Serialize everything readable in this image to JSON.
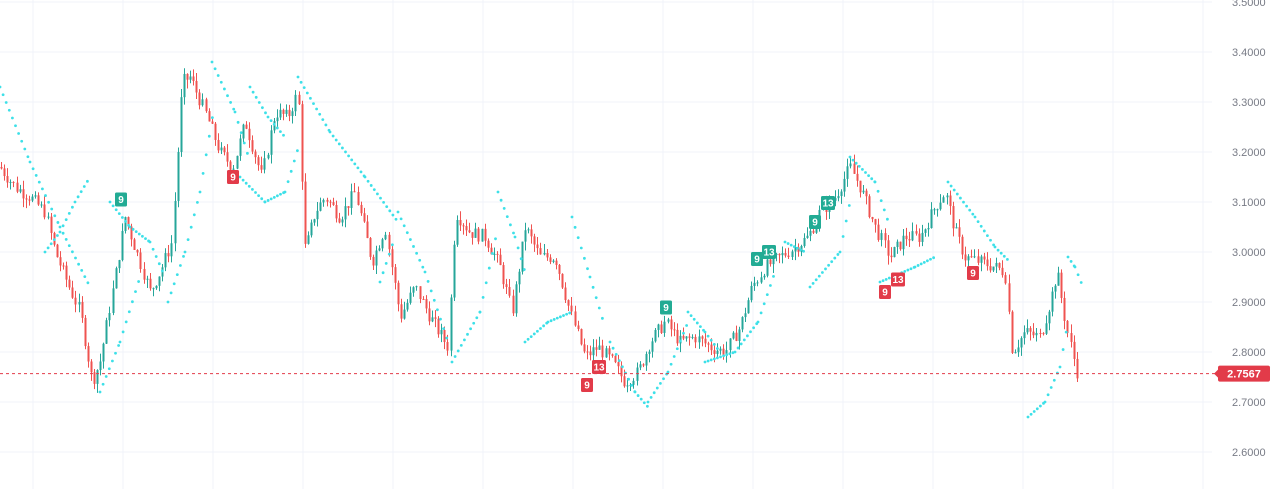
{
  "chart_data": {
    "type": "candlestick",
    "title": "",
    "ylim": [
      2.575,
      3.5
    ],
    "y_ticks": [
      "2.6000",
      "2.7000",
      "2.8000",
      "2.9000",
      "3.0000",
      "3.1000",
      "3.2000",
      "3.3000",
      "3.4000",
      "3.5000"
    ],
    "last_price": "2.7567",
    "grid": true,
    "colors": {
      "up": "#26a69a",
      "down": "#ef5350",
      "sar": "#3de0e8",
      "buy_badge": "#22ab94",
      "sell_badge": "#e23b49",
      "grid": "#f0f3fa"
    },
    "price_path": [
      [
        0,
        3.17
      ],
      [
        15,
        3.13
      ],
      [
        30,
        3.11
      ],
      [
        45,
        3.08
      ],
      [
        55,
        3.0
      ],
      [
        65,
        2.95
      ],
      [
        80,
        2.88
      ],
      [
        92,
        2.74
      ],
      [
        100,
        2.78
      ],
      [
        115,
        2.95
      ],
      [
        125,
        3.07
      ],
      [
        135,
        3.01
      ],
      [
        150,
        2.92
      ],
      [
        160,
        2.96
      ],
      [
        172,
        3.02
      ],
      [
        182,
        3.34
      ],
      [
        190,
        3.35
      ],
      [
        205,
        3.28
      ],
      [
        220,
        3.2
      ],
      [
        233,
        3.17
      ],
      [
        245,
        3.26
      ],
      [
        262,
        3.15
      ],
      [
        275,
        3.28
      ],
      [
        288,
        3.27
      ],
      [
        298,
        3.32
      ],
      [
        305,
        3.0
      ],
      [
        315,
        3.08
      ],
      [
        325,
        3.11
      ],
      [
        340,
        3.07
      ],
      [
        355,
        3.12
      ],
      [
        372,
        2.98
      ],
      [
        385,
        3.05
      ],
      [
        400,
        2.87
      ],
      [
        415,
        2.93
      ],
      [
        430,
        2.87
      ],
      [
        448,
        2.81
      ],
      [
        455,
        3.08
      ],
      [
        470,
        3.04
      ],
      [
        485,
        3.03
      ],
      [
        500,
        2.97
      ],
      [
        512,
        2.88
      ],
      [
        525,
        3.05
      ],
      [
        540,
        2.99
      ],
      [
        555,
        2.99
      ],
      [
        570,
        2.88
      ],
      [
        585,
        2.79
      ],
      [
        598,
        2.81
      ],
      [
        612,
        2.78
      ],
      [
        625,
        2.74
      ],
      [
        638,
        2.76
      ],
      [
        650,
        2.82
      ],
      [
        665,
        2.86
      ],
      [
        680,
        2.82
      ],
      [
        695,
        2.83
      ],
      [
        710,
        2.81
      ],
      [
        725,
        2.8
      ],
      [
        740,
        2.85
      ],
      [
        752,
        2.93
      ],
      [
        765,
        2.97
      ],
      [
        780,
        2.99
      ],
      [
        795,
        3.01
      ],
      [
        808,
        3.03
      ],
      [
        820,
        3.08
      ],
      [
        835,
        3.11
      ],
      [
        850,
        3.17
      ],
      [
        860,
        3.13
      ],
      [
        875,
        3.05
      ],
      [
        890,
        2.99
      ],
      [
        905,
        3.03
      ],
      [
        920,
        3.03
      ],
      [
        935,
        3.09
      ],
      [
        945,
        3.12
      ],
      [
        955,
        3.04
      ],
      [
        965,
        2.99
      ],
      [
        980,
        2.98
      ],
      [
        995,
        2.97
      ],
      [
        1005,
        2.96
      ],
      [
        1012,
        2.8
      ],
      [
        1025,
        2.84
      ],
      [
        1040,
        2.83
      ],
      [
        1050,
        2.9
      ],
      [
        1057,
        2.96
      ],
      [
        1066,
        2.85
      ],
      [
        1078,
        2.75
      ]
    ],
    "parabolic_sar": [
      [
        [
          0,
          3.33
        ],
        [
          30,
          3.18
        ],
        [
          60,
          3.05
        ],
        [
          90,
          2.93
        ]
      ],
      [
        [
          45,
          3.0
        ],
        [
          60,
          3.04
        ],
        [
          75,
          3.1
        ],
        [
          90,
          3.15
        ]
      ],
      [
        [
          100,
          2.72
        ],
        [
          120,
          2.82
        ],
        [
          140,
          2.95
        ]
      ],
      [
        [
          110,
          3.1
        ],
        [
          130,
          3.05
        ],
        [
          150,
          3.02
        ],
        [
          165,
          2.95
        ]
      ],
      [
        [
          168,
          2.9
        ],
        [
          185,
          3.0
        ],
        [
          200,
          3.12
        ],
        [
          215,
          3.3
        ]
      ],
      [
        [
          212,
          3.38
        ],
        [
          235,
          3.28
        ],
        [
          250,
          3.18
        ]
      ],
      [
        [
          240,
          3.15
        ],
        [
          265,
          3.1
        ],
        [
          285,
          3.12
        ],
        [
          300,
          3.22
        ]
      ],
      [
        [
          250,
          3.33
        ],
        [
          268,
          3.27
        ],
        [
          285,
          3.23
        ]
      ],
      [
        [
          298,
          3.35
        ],
        [
          330,
          3.24
        ],
        [
          365,
          3.15
        ],
        [
          398,
          3.06
        ]
      ],
      [
        [
          380,
          2.94
        ],
        [
          395,
          3.03
        ]
      ],
      [
        [
          398,
          3.08
        ],
        [
          425,
          2.96
        ],
        [
          448,
          2.82
        ]
      ],
      [
        [
          452,
          2.78
        ],
        [
          480,
          2.88
        ],
        [
          498,
          3.05
        ]
      ],
      [
        [
          498,
          3.12
        ],
        [
          515,
          3.03
        ],
        [
          525,
          2.96
        ]
      ],
      [
        [
          525,
          2.82
        ],
        [
          548,
          2.86
        ],
        [
          572,
          2.88
        ]
      ],
      [
        [
          572,
          3.07
        ],
        [
          590,
          2.95
        ],
        [
          605,
          2.85
        ]
      ],
      [
        [
          610,
          2.82
        ],
        [
          635,
          2.72
        ],
        [
          648,
          2.69
        ]
      ],
      [
        [
          648,
          2.7
        ],
        [
          668,
          2.76
        ],
        [
          688,
          2.86
        ]
      ],
      [
        [
          688,
          2.88
        ],
        [
          705,
          2.84
        ],
        [
          720,
          2.8
        ]
      ],
      [
        [
          705,
          2.78
        ],
        [
          735,
          2.8
        ],
        [
          758,
          2.86
        ],
        [
          775,
          2.96
        ]
      ],
      [
        [
          785,
          3.02
        ],
        [
          805,
          3.0
        ]
      ],
      [
        [
          810,
          2.93
        ],
        [
          840,
          3.0
        ],
        [
          850,
          3.1
        ]
      ],
      [
        [
          850,
          3.19
        ],
        [
          875,
          3.14
        ],
        [
          890,
          3.05
        ]
      ],
      [
        [
          880,
          2.94
        ],
        [
          915,
          2.97
        ],
        [
          935,
          2.99
        ]
      ],
      [
        [
          948,
          3.14
        ],
        [
          975,
          3.07
        ],
        [
          995,
          3.01
        ],
        [
          1010,
          2.98
        ]
      ],
      [
        [
          1028,
          2.67
        ],
        [
          1045,
          2.7
        ],
        [
          1060,
          2.77
        ],
        [
          1068,
          2.86
        ]
      ],
      [
        [
          1068,
          2.99
        ],
        [
          1075,
          2.97
        ],
        [
          1083,
          2.93
        ]
      ]
    ],
    "annotations": [
      {
        "label": "9",
        "type": "buy",
        "x": 121,
        "y": 3.105
      },
      {
        "label": "9",
        "type": "sell",
        "x": 233,
        "y": 3.15
      },
      {
        "label": "9",
        "type": "sell",
        "x": 587,
        "y": 2.734
      },
      {
        "label": "13",
        "type": "sell",
        "x": 599,
        "y": 2.77
      },
      {
        "label": "9",
        "type": "buy",
        "x": 666,
        "y": 2.889
      },
      {
        "label": "9",
        "type": "buy",
        "x": 757,
        "y": 2.986
      },
      {
        "label": "13",
        "type": "buy",
        "x": 769,
        "y": 3.0
      },
      {
        "label": "9",
        "type": "buy",
        "x": 815,
        "y": 3.06
      },
      {
        "label": "13",
        "type": "buy",
        "x": 828,
        "y": 3.098
      },
      {
        "label": "9",
        "type": "sell",
        "x": 885,
        "y": 2.92
      },
      {
        "label": "13",
        "type": "sell",
        "x": 898,
        "y": 2.945
      },
      {
        "label": "9",
        "type": "sell",
        "x": 973,
        "y": 2.958
      }
    ]
  }
}
